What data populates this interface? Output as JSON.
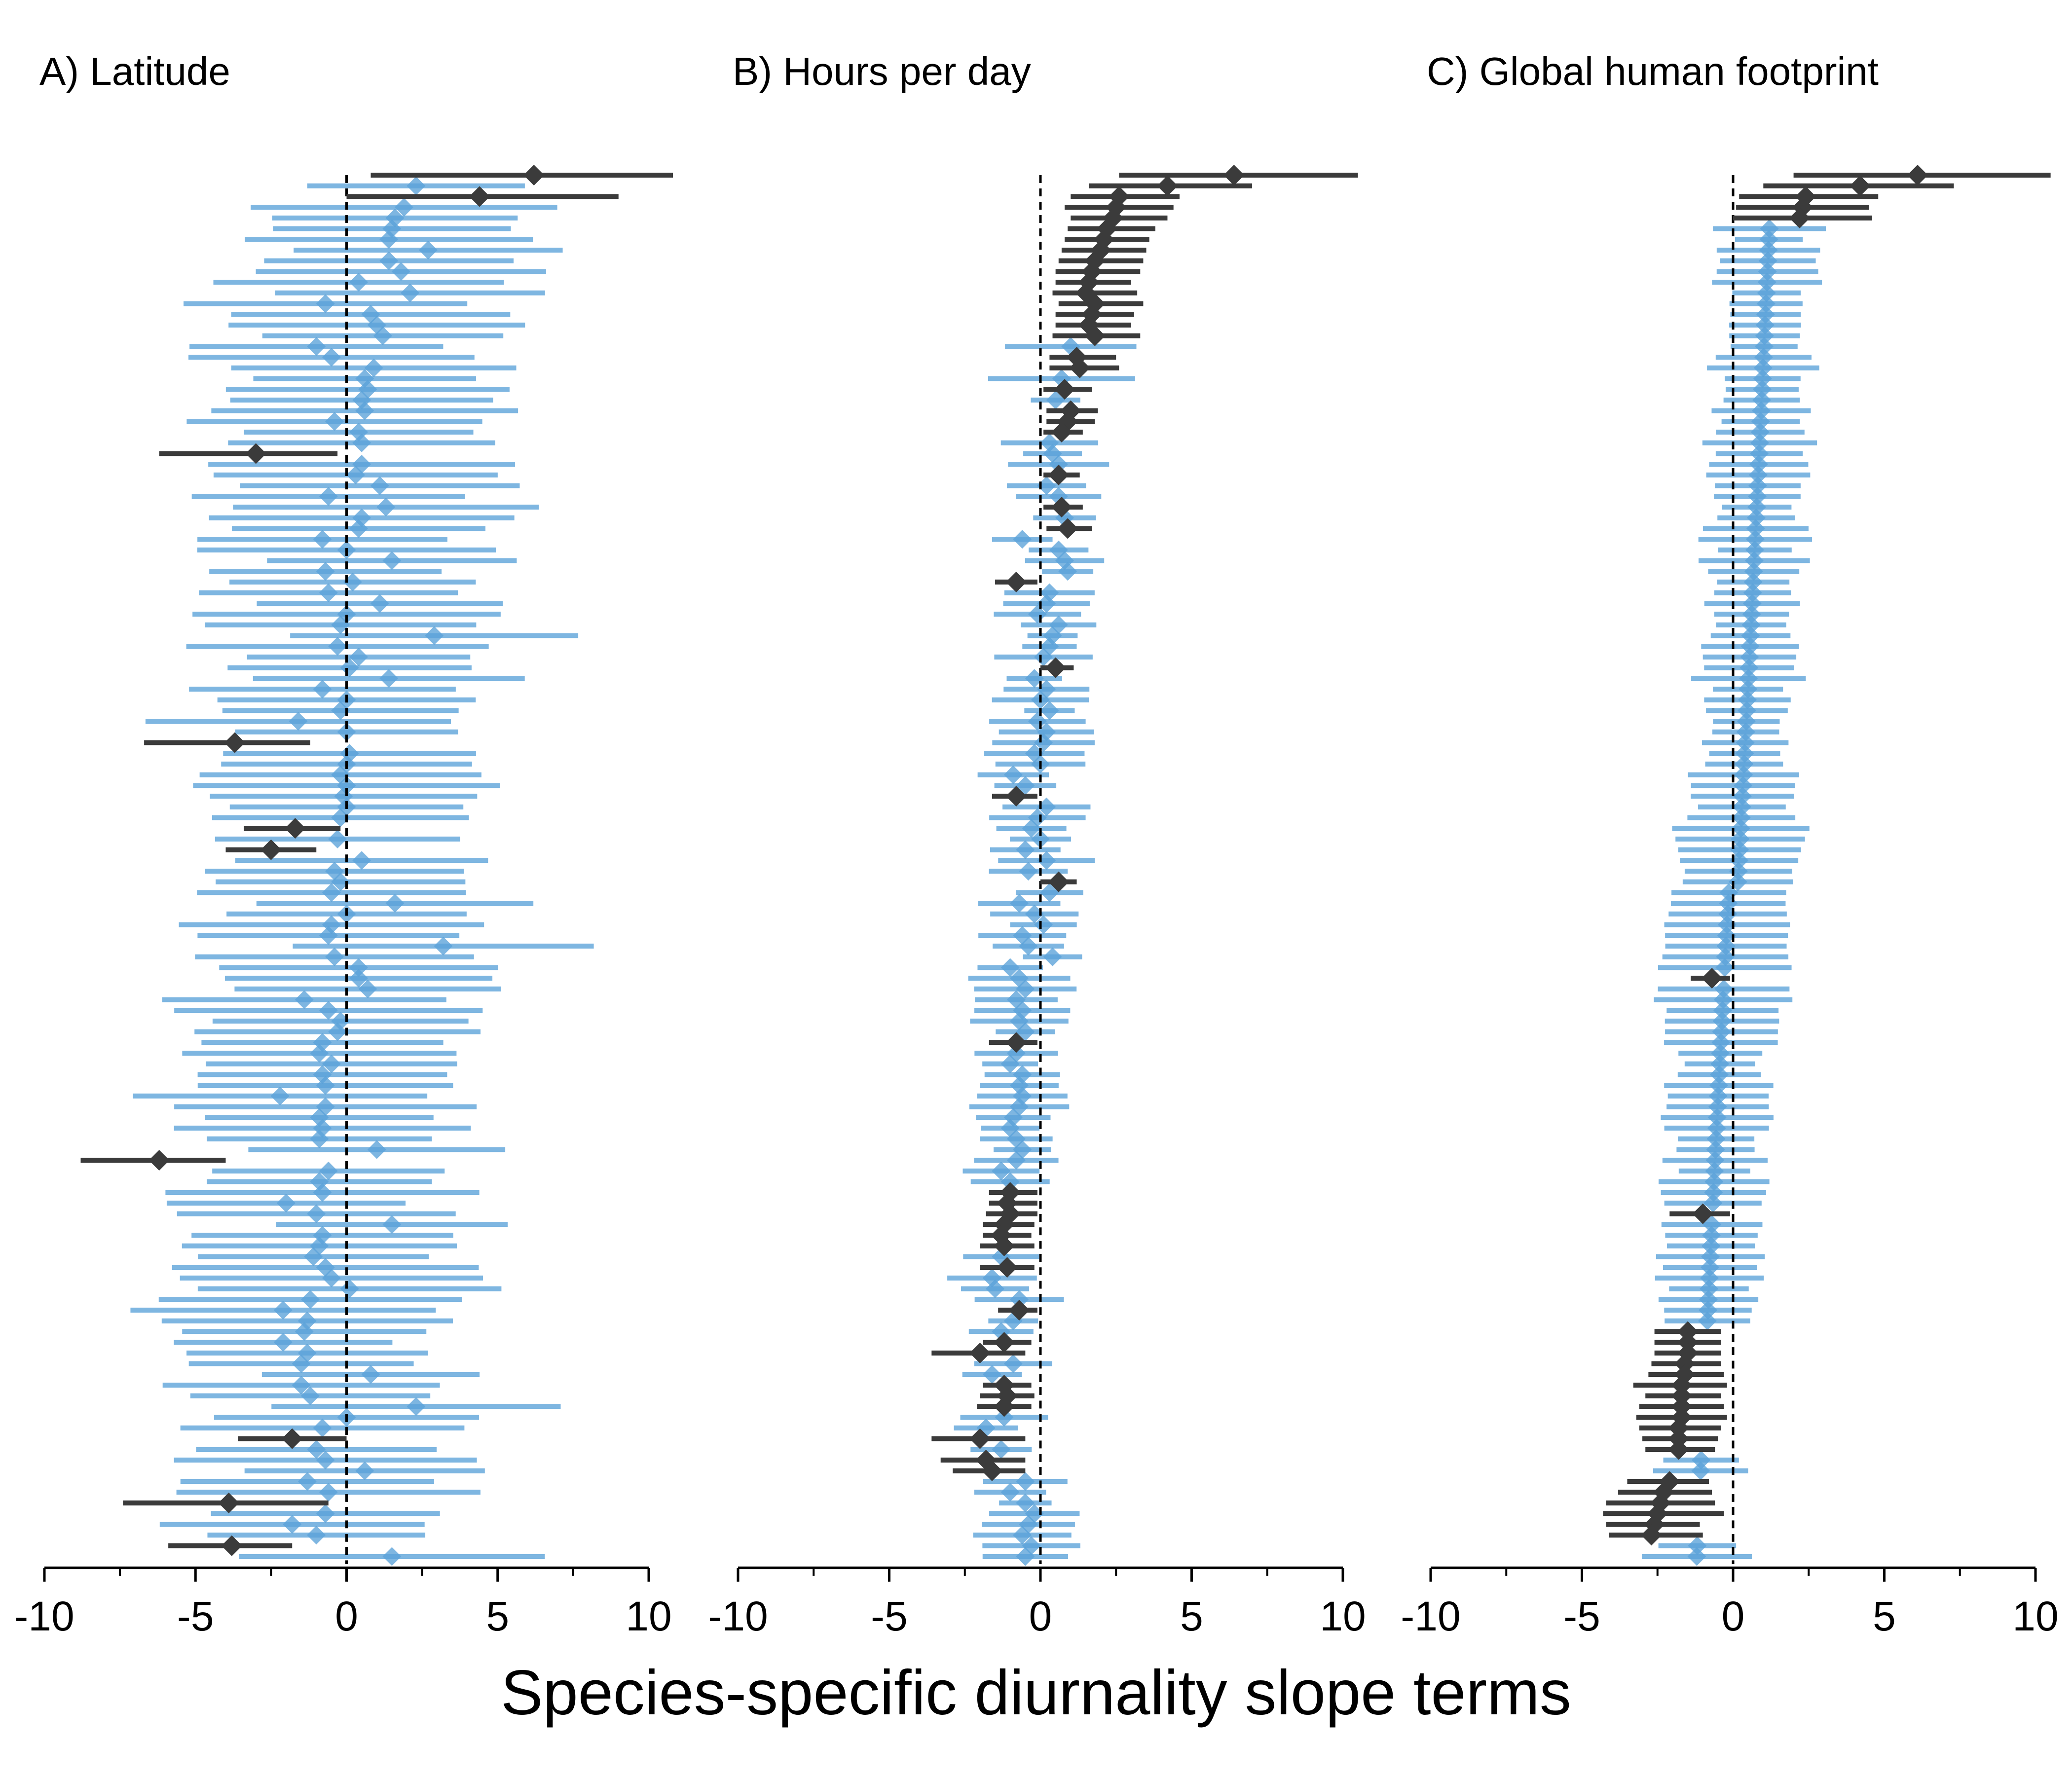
{
  "figure": {
    "xlabel": "Species-specific diurnality slope terms",
    "colors": {
      "significant": "#3b3b3b",
      "nonsignificant": "#5aa2d8",
      "reference_line": "#000000"
    }
  },
  "chart_data": [
    {
      "type": "forest",
      "title": "A) Latitude",
      "xlim": [
        -10,
        10
      ],
      "xticks": [
        -10,
        -5,
        0,
        5,
        10
      ],
      "reference_line": 0,
      "grid": false,
      "highlight": [
        {
          "rank": 0,
          "est": 6.2,
          "lo": 0.8,
          "hi": 10.8
        },
        {
          "rank": 2,
          "est": 4.4,
          "lo": 0.0,
          "hi": 9.0
        },
        {
          "rank": 26,
          "est": -3.0,
          "lo": -6.2,
          "hi": -0.3
        },
        {
          "rank": 53,
          "est": -3.7,
          "lo": -6.7,
          "hi": -1.2
        },
        {
          "rank": 61,
          "est": -1.7,
          "lo": -3.4,
          "hi": -0.2
        },
        {
          "rank": 63,
          "est": -2.5,
          "lo": -4.0,
          "hi": -1.0
        },
        {
          "rank": 92,
          "est": -6.2,
          "lo": -8.8,
          "hi": -4.0
        },
        {
          "rank": 118,
          "est": -1.8,
          "lo": -3.6,
          "hi": 0.0
        },
        {
          "rank": 124,
          "est": -3.9,
          "lo": -7.4,
          "hi": -0.6
        },
        {
          "rank": 128,
          "est": -3.8,
          "lo": -5.9,
          "hi": -1.8
        }
      ],
      "background_estimates": [
        2.5,
        2.3,
        2.4,
        1.9,
        1.6,
        1.5,
        1.4,
        2.7,
        1.4,
        1.8,
        0.4,
        2.1,
        -0.7,
        0.8,
        1.0,
        1.2,
        -1.0,
        -0.5,
        0.9,
        0.6,
        0.7,
        0.5,
        0.6,
        -0.4,
        0.4,
        0.5,
        0.6,
        0.5,
        0.3,
        1.1,
        -0.6,
        1.3,
        0.5,
        0.4,
        -0.8,
        0.0,
        1.5,
        -0.7,
        0.2,
        -0.6,
        1.1,
        0.0,
        -0.2,
        2.9,
        -0.3,
        0.4,
        0.1,
        1.4,
        -0.8,
        0.0,
        -0.2,
        -1.6,
        0.0,
        -0.1,
        0.1,
        0.0,
        -0.2,
        0.0,
        -0.1,
        0.0,
        -0.2,
        -0.1,
        -0.3,
        0.0,
        0.5,
        -0.4,
        -0.2,
        -0.5,
        1.6,
        0.0,
        -0.5,
        -0.6,
        3.2,
        -0.4,
        0.4,
        0.4,
        0.7,
        -1.4,
        -0.6,
        -0.2,
        -0.3,
        -0.8,
        -0.9,
        -0.5,
        -0.8,
        -0.7,
        -2.2,
        -0.7,
        -0.9,
        -0.8,
        -0.9,
        1.0,
        -0.8,
        -0.6,
        -0.9,
        -0.8,
        -2.0,
        -1.0,
        1.5,
        -0.8,
        -0.9,
        -1.1,
        -0.7,
        -0.5,
        0.1,
        -1.2,
        -2.1,
        -1.3,
        -1.4,
        -2.1,
        -1.3,
        -1.5,
        0.8,
        -1.5,
        -1.2,
        2.3,
        0.0,
        -0.8,
        -0.8,
        -1.0,
        -0.7,
        0.6,
        -1.3,
        -0.6,
        -1.1,
        -0.7,
        -1.8,
        -1.0,
        -0.8,
        1.5,
        -0.7,
        -0.9
      ]
    },
    {
      "type": "forest",
      "title": "B) Hours per day",
      "xlim": [
        -10,
        10
      ],
      "xticks": [
        -10,
        -5,
        0,
        5,
        10
      ],
      "reference_line": 0,
      "grid": false,
      "highlight": [
        {
          "rank": 0,
          "est": 6.4,
          "lo": 2.6,
          "hi": 10.5
        },
        {
          "rank": 1,
          "est": 4.2,
          "lo": 1.6,
          "hi": 7.0
        },
        {
          "rank": 2,
          "est": 2.6,
          "lo": 1.0,
          "hi": 4.6
        },
        {
          "rank": 3,
          "est": 2.5,
          "lo": 0.8,
          "hi": 4.4
        },
        {
          "rank": 4,
          "est": 2.4,
          "lo": 1.0,
          "hi": 4.2
        },
        {
          "rank": 5,
          "est": 2.2,
          "lo": 0.9,
          "hi": 3.8
        },
        {
          "rank": 6,
          "est": 2.1,
          "lo": 0.8,
          "hi": 3.6
        },
        {
          "rank": 7,
          "est": 2.0,
          "lo": 0.7,
          "hi": 3.5
        },
        {
          "rank": 8,
          "est": 1.8,
          "lo": 0.6,
          "hi": 3.4
        },
        {
          "rank": 9,
          "est": 1.7,
          "lo": 0.5,
          "hi": 3.3
        },
        {
          "rank": 10,
          "est": 1.6,
          "lo": 0.5,
          "hi": 3.0
        },
        {
          "rank": 11,
          "est": 1.5,
          "lo": 0.4,
          "hi": 3.2
        },
        {
          "rank": 12,
          "est": 1.8,
          "lo": 0.6,
          "hi": 3.4
        },
        {
          "rank": 13,
          "est": 1.7,
          "lo": 0.5,
          "hi": 3.1
        },
        {
          "rank": 14,
          "est": 1.6,
          "lo": 0.5,
          "hi": 3.0
        },
        {
          "rank": 15,
          "est": 1.8,
          "lo": 0.4,
          "hi": 3.3
        },
        {
          "rank": 17,
          "est": 1.2,
          "lo": 0.3,
          "hi": 2.5
        },
        {
          "rank": 18,
          "est": 1.3,
          "lo": 0.3,
          "hi": 2.6
        },
        {
          "rank": 20,
          "est": 0.8,
          "lo": 0.1,
          "hi": 1.7
        },
        {
          "rank": 22,
          "est": 1.0,
          "lo": 0.2,
          "hi": 1.9
        },
        {
          "rank": 23,
          "est": 0.9,
          "lo": 0.2,
          "hi": 1.8
        },
        {
          "rank": 24,
          "est": 0.7,
          "lo": 0.1,
          "hi": 1.4
        },
        {
          "rank": 28,
          "est": 0.6,
          "lo": 0.1,
          "hi": 1.3
        },
        {
          "rank": 31,
          "est": 0.7,
          "lo": 0.1,
          "hi": 1.4
        },
        {
          "rank": 33,
          "est": 0.9,
          "lo": 0.2,
          "hi": 1.7
        },
        {
          "rank": 38,
          "est": -0.8,
          "lo": -1.5,
          "hi": -0.1
        },
        {
          "rank": 46,
          "est": 0.5,
          "lo": 0.0,
          "hi": 1.1
        },
        {
          "rank": 58,
          "est": -0.8,
          "lo": -1.6,
          "hi": -0.1
        },
        {
          "rank": 66,
          "est": 0.6,
          "lo": 0.0,
          "hi": 1.2
        },
        {
          "rank": 81,
          "est": -0.8,
          "lo": -1.7,
          "hi": -0.1
        },
        {
          "rank": 95,
          "est": -1.0,
          "lo": -1.7,
          "hi": -0.1
        },
        {
          "rank": 96,
          "est": -1.1,
          "lo": -1.7,
          "hi": -0.1
        },
        {
          "rank": 97,
          "est": -1.0,
          "lo": -1.8,
          "hi": -0.1
        },
        {
          "rank": 98,
          "est": -1.2,
          "lo": -1.9,
          "hi": -0.2
        },
        {
          "rank": 99,
          "est": -1.3,
          "lo": -1.9,
          "hi": -0.3
        },
        {
          "rank": 100,
          "est": -1.2,
          "lo": -2.0,
          "hi": -0.2
        },
        {
          "rank": 102,
          "est": -1.1,
          "lo": -2.0,
          "hi": -0.2
        },
        {
          "rank": 106,
          "est": -0.7,
          "lo": -1.4,
          "hi": -0.1
        },
        {
          "rank": 109,
          "est": -1.2,
          "lo": -1.9,
          "hi": -0.3
        },
        {
          "rank": 110,
          "est": -2.0,
          "lo": -3.6,
          "hi": -0.5
        },
        {
          "rank": 113,
          "est": -1.2,
          "lo": -1.9,
          "hi": -0.3
        },
        {
          "rank": 114,
          "est": -1.1,
          "lo": -2.0,
          "hi": -0.2
        },
        {
          "rank": 115,
          "est": -1.2,
          "lo": -2.1,
          "hi": -0.3
        },
        {
          "rank": 118,
          "est": -2.0,
          "lo": -3.6,
          "hi": -0.5
        },
        {
          "rank": 120,
          "est": -1.8,
          "lo": -3.3,
          "hi": -0.5
        },
        {
          "rank": 121,
          "est": -1.6,
          "lo": -2.9,
          "hi": -0.5
        }
      ],
      "background_estimates": [
        2.4,
        2.1,
        1.9,
        1.6,
        1.8,
        1.9,
        1.7,
        1.5,
        1.6,
        1.4,
        1.3,
        1.6,
        1.2,
        1.1,
        1.7,
        2.2,
        1.0,
        0.8,
        1.2,
        0.7,
        0.9,
        0.5,
        0.6,
        0.5,
        0.1,
        0.3,
        0.4,
        0.6,
        0.5,
        0.2,
        0.6,
        0.7,
        0.8,
        0.5,
        -0.6,
        0.6,
        0.8,
        0.9,
        0.7,
        0.3,
        0.2,
        -0.1,
        0.6,
        0.4,
        0.3,
        0.1,
        0.7,
        -0.2,
        0.2,
        0.0,
        0.3,
        -0.1,
        0.2,
        0.1,
        -0.2,
        0.0,
        -0.9,
        -0.5,
        -0.6,
        0.2,
        -0.1,
        -0.3,
        0.0,
        -0.5,
        0.2,
        -0.4,
        -0.2,
        0.3,
        -0.7,
        -0.2,
        0.1,
        -0.6,
        -0.4,
        0.4,
        -1.0,
        -0.7,
        -0.5,
        -0.8,
        -0.6,
        -0.7,
        -0.5,
        -0.9,
        -0.8,
        -1.0,
        -0.6,
        -0.7,
        -0.6,
        -0.7,
        -0.9,
        -1.0,
        -0.8,
        -0.6,
        -0.8,
        -1.3,
        -1.0,
        -0.5,
        -0.8,
        -1.0,
        -0.8,
        -0.9,
        -1.1,
        -1.3,
        -1.4,
        -1.6,
        -1.5,
        -0.7,
        -1.8,
        -0.9,
        -1.3,
        -1.1,
        -0.8,
        -0.9,
        -1.6,
        -1.2,
        -1.4,
        -1.7,
        -1.2,
        -1.8,
        -1.1,
        -1.3,
        -0.7,
        -0.4,
        -0.5,
        -1.0,
        -0.5,
        -0.2,
        -0.4,
        -0.6,
        -0.3,
        -0.5
      ]
    },
    {
      "type": "forest",
      "title": "C) Global human footprint",
      "xlim": [
        -10,
        10
      ],
      "xticks": [
        -10,
        -5,
        0,
        5,
        10
      ],
      "reference_line": 0,
      "grid": false,
      "highlight": [
        {
          "rank": 0,
          "est": 6.1,
          "lo": 2.0,
          "hi": 10.5
        },
        {
          "rank": 1,
          "est": 4.2,
          "lo": 1.0,
          "hi": 7.3
        },
        {
          "rank": 2,
          "est": 2.4,
          "lo": 0.2,
          "hi": 4.8
        },
        {
          "rank": 3,
          "est": 2.3,
          "lo": 0.1,
          "hi": 4.5
        },
        {
          "rank": 4,
          "est": 2.2,
          "lo": 0.0,
          "hi": 4.6
        },
        {
          "rank": 75,
          "est": -0.7,
          "lo": -1.4,
          "hi": -0.1
        },
        {
          "rank": 97,
          "est": -1.0,
          "lo": -2.1,
          "hi": -0.1
        },
        {
          "rank": 108,
          "est": -1.5,
          "lo": -2.6,
          "hi": -0.4
        },
        {
          "rank": 109,
          "est": -1.5,
          "lo": -2.6,
          "hi": -0.4
        },
        {
          "rank": 110,
          "est": -1.5,
          "lo": -2.6,
          "hi": -0.4
        },
        {
          "rank": 111,
          "est": -1.6,
          "lo": -2.7,
          "hi": -0.4
        },
        {
          "rank": 112,
          "est": -1.6,
          "lo": -2.8,
          "hi": -0.3
        },
        {
          "rank": 113,
          "est": -1.7,
          "lo": -3.3,
          "hi": -0.2
        },
        {
          "rank": 114,
          "est": -1.7,
          "lo": -2.9,
          "hi": -0.4
        },
        {
          "rank": 115,
          "est": -1.7,
          "lo": -3.1,
          "hi": -0.3
        },
        {
          "rank": 116,
          "est": -1.7,
          "lo": -3.2,
          "hi": -0.2
        },
        {
          "rank": 117,
          "est": -1.8,
          "lo": -3.1,
          "hi": -0.4
        },
        {
          "rank": 118,
          "est": -1.8,
          "lo": -3.0,
          "hi": -0.5
        },
        {
          "rank": 119,
          "est": -1.8,
          "lo": -2.9,
          "hi": -0.6
        },
        {
          "rank": 122,
          "est": -2.1,
          "lo": -3.5,
          "hi": -0.8
        },
        {
          "rank": 123,
          "est": -2.3,
          "lo": -3.8,
          "hi": -0.7
        },
        {
          "rank": 124,
          "est": -2.4,
          "lo": -4.2,
          "hi": -0.6
        },
        {
          "rank": 125,
          "est": -2.5,
          "lo": -4.3,
          "hi": -0.3
        },
        {
          "rank": 126,
          "est": -2.6,
          "lo": -4.2,
          "hi": -1.1
        },
        {
          "rank": 127,
          "est": -2.7,
          "lo": -4.1,
          "hi": -1.0
        }
      ],
      "background_estimates": "monotonic sequence: 2.0 at row 5 decreasing to -2.0 at row 129 (0.4 at mid-point)"
    }
  ]
}
